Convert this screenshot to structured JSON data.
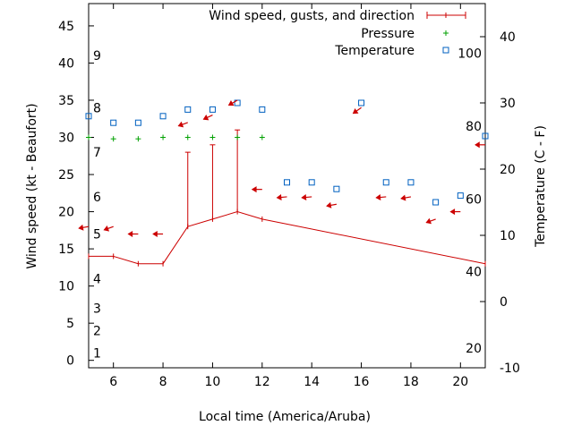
{
  "chart_data": {
    "type": "line",
    "xlabel": "Local time (America/Aruba)",
    "ylabel": "Wind speed (kt - Beaufort)",
    "y2label": "Temperature (C - F)",
    "xlim": [
      5,
      21
    ],
    "ylim": [
      -1,
      48
    ],
    "y2lim": [
      -10,
      45
    ],
    "x_ticks": [
      6,
      8,
      10,
      12,
      14,
      16,
      18,
      20
    ],
    "y_ticks": [
      0,
      5,
      10,
      15,
      20,
      25,
      30,
      35,
      40,
      45
    ],
    "y2_ticks": [
      -10,
      0,
      10,
      20,
      30,
      40
    ],
    "beaufort_labels": [
      {
        "label": "1",
        "y": 1
      },
      {
        "label": "2",
        "y": 4
      },
      {
        "label": "3",
        "y": 7
      },
      {
        "label": "4",
        "y": 11
      },
      {
        "label": "5",
        "y": 17
      },
      {
        "label": "6",
        "y": 22
      },
      {
        "label": "7",
        "y": 28
      },
      {
        "label": "8",
        "y": 34
      },
      {
        "label": "9",
        "y": 41
      }
    ],
    "fahrenheit_labels": [
      {
        "label": "20",
        "y": -7
      },
      {
        "label": "40",
        "y": 4.5
      },
      {
        "label": "60",
        "y": 15.5
      },
      {
        "label": "80",
        "y": 26.5
      },
      {
        "label": "100",
        "y": 37.5
      }
    ],
    "legend": [
      {
        "name": "Wind speed, gusts, and direction",
        "color": "#cc0000",
        "symbol": "errorline"
      },
      {
        "name": "Pressure",
        "color": "#00a000",
        "symbol": "plus"
      },
      {
        "name": "Temperature",
        "color": "#0060c0",
        "symbol": "square"
      }
    ],
    "legend_position": "top-right",
    "series": [
      {
        "name": "Wind speed, gusts, and direction",
        "x": [
          5,
          6,
          7,
          8,
          9,
          10,
          11,
          12,
          21
        ],
        "values": [
          14,
          14,
          13,
          13,
          18,
          19,
          20,
          19,
          13
        ],
        "gust_high": [
          null,
          null,
          null,
          null,
          28,
          29,
          31,
          null,
          null
        ]
      },
      {
        "name": "Pressure",
        "x": [
          5,
          6,
          7,
          8,
          9,
          10,
          11,
          12
        ],
        "values": [
          30,
          29.8,
          29.8,
          30,
          30,
          30,
          30,
          30
        ]
      },
      {
        "name": "Temperature",
        "x": [
          5,
          6,
          7,
          8,
          9,
          10,
          11,
          12,
          13,
          14,
          15,
          16,
          17,
          18,
          19,
          20,
          21
        ],
        "values": [
          28,
          27,
          27,
          28,
          29,
          29,
          30,
          29,
          18,
          18,
          17,
          30,
          18,
          18,
          15,
          16,
          25
        ]
      }
    ],
    "direction_arrows": {
      "x": [
        5,
        6,
        7,
        8,
        9,
        10,
        11,
        12,
        13,
        14,
        15,
        16,
        17,
        18,
        19,
        20,
        21
      ],
      "values": [
        18,
        18,
        17,
        17,
        32,
        33,
        35,
        23,
        22,
        22,
        21,
        34,
        22,
        22,
        19,
        20,
        29
      ],
      "angle_deg": [
        190,
        200,
        180,
        180,
        200,
        205,
        210,
        180,
        185,
        185,
        190,
        215,
        185,
        190,
        200,
        180,
        180
      ]
    },
    "colors": {
      "wind": "#cc0000",
      "pressure": "#00a000",
      "temperature": "#0060c0"
    }
  }
}
